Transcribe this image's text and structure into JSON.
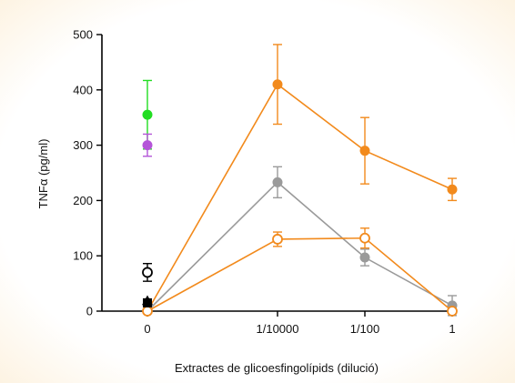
{
  "chart_data": {
    "type": "line",
    "ylabel": "TNFα (pg/ml)",
    "xlabel": "Extractes de glicoesfingolípids (dilució)",
    "categories": [
      "0",
      "1/10000",
      "1/100",
      "1"
    ],
    "ylim": [
      0,
      500
    ],
    "yticks": [
      0,
      100,
      200,
      300,
      400,
      500
    ],
    "grid": false,
    "legend": "none",
    "series": [
      {
        "marker": "filled-circle",
        "color": "#f28a1c",
        "line": true,
        "values": [
          0,
          410,
          290,
          220
        ],
        "errors": [
          0,
          72,
          60,
          20
        ]
      },
      {
        "marker": "filled-circle",
        "color": "#9a9a9a",
        "line": true,
        "values": [
          0,
          233,
          97,
          10
        ],
        "errors": [
          0,
          28,
          15,
          18
        ]
      },
      {
        "marker": "open-circle",
        "color": "#f28a1c",
        "line": true,
        "values": [
          0,
          130,
          132,
          0
        ],
        "errors": [
          0,
          13,
          18,
          0
        ]
      }
    ],
    "controls": [
      {
        "marker": "filled-circle",
        "color": "#22dd22",
        "value": 355,
        "error": 62
      },
      {
        "marker": "filled-circle",
        "color": "#b455d8",
        "value": 300,
        "error": 20
      },
      {
        "marker": "open-circle",
        "color": "#000000",
        "value": 70,
        "error": 16
      },
      {
        "marker": "filled-triangle",
        "color": "#000000",
        "value": 19,
        "error": 0
      },
      {
        "marker": "filled-square",
        "color": "#000000",
        "value": 15,
        "error": 0
      }
    ]
  }
}
